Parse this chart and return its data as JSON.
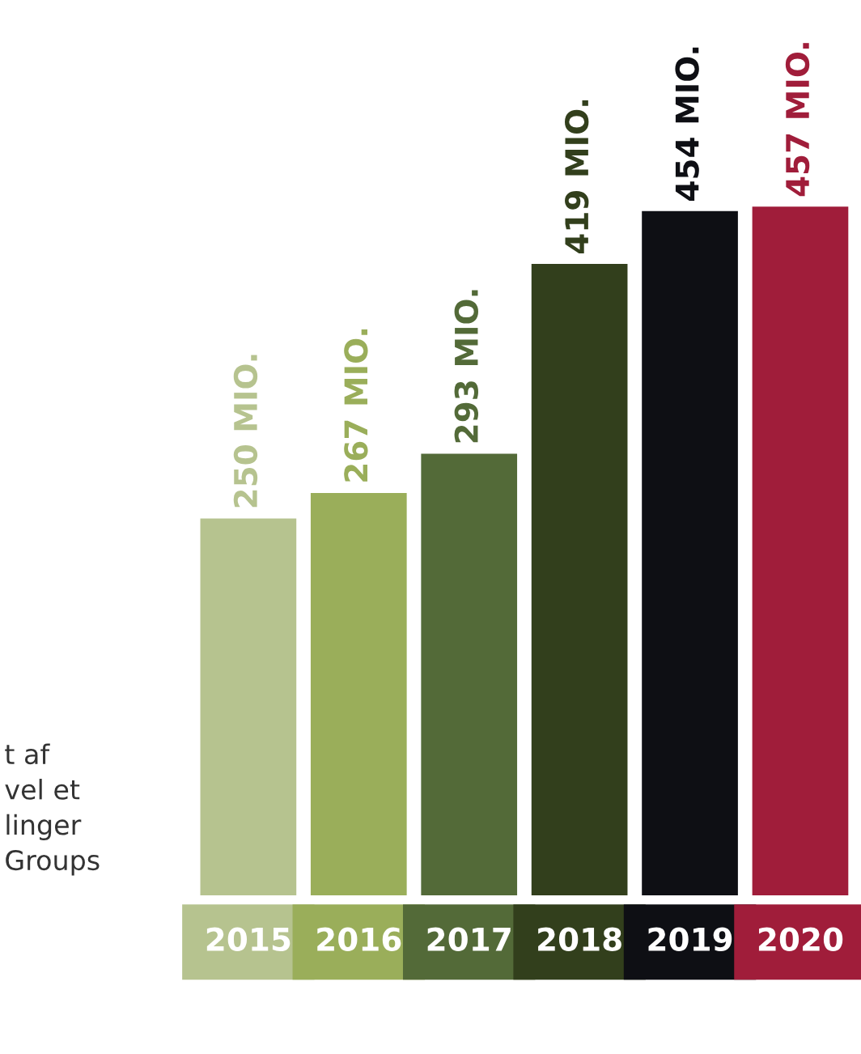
{
  "chart_data": {
    "type": "bar",
    "categories": [
      "2015",
      "2016",
      "2017",
      "2018",
      "2019",
      "2020"
    ],
    "values": [
      250,
      267,
      293,
      419,
      454,
      457
    ],
    "colors": [
      "#b6c38f",
      "#9aae5a",
      "#536a38",
      "#323f1c",
      "#0e0f14",
      "#a01d3a"
    ],
    "value_labels": [
      "250 MIO.",
      "267 MIO.",
      "293 MIO.",
      "419 MIO.",
      "454 MIO.",
      "457 MIO."
    ],
    "tick_labels": "x",
    "annotations": [
      "t af\nvel et\nlinger\nGroups"
    ]
  }
}
